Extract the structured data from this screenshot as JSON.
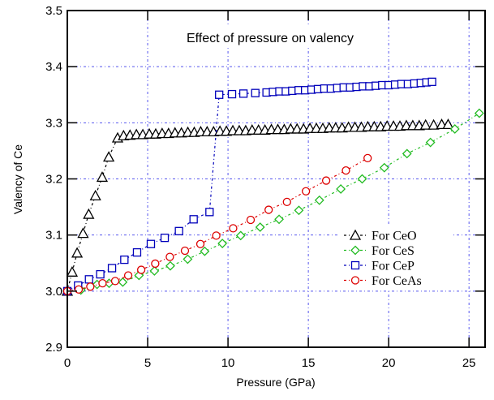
{
  "chart_data": {
    "type": "line",
    "title": "Effect of pressure on valency",
    "xlabel": "Pressure (GPa)",
    "ylabel": "Valency of Ce",
    "xlim": [
      0,
      26
    ],
    "ylim": [
      2.9,
      3.5
    ],
    "xticks": [
      0,
      5,
      10,
      15,
      20,
      25
    ],
    "xtick_labels": [
      "0",
      "5",
      "10",
      "15",
      "20",
      "25"
    ],
    "yticks": [
      2.9,
      3.0,
      3.1,
      3.2,
      3.3,
      3.4,
      3.5
    ],
    "ytick_labels": [
      "2.9",
      "3.0",
      "3.1",
      "3.2",
      "3.3",
      "3.4",
      "3.5"
    ],
    "grid": true,
    "legend_position": "center-right",
    "series": [
      {
        "name": "For CeO",
        "marker": "triangle",
        "color": "#000000",
        "x": [
          0,
          0.3,
          0.61,
          0.98,
          1.33,
          1.75,
          2.17,
          2.58,
          3.13,
          3.5,
          3.9,
          4.3,
          4.7,
          5.1,
          5.5,
          5.9,
          6.3,
          6.7,
          7.1,
          7.5,
          7.9,
          8.3,
          8.7,
          9.1,
          9.5,
          9.9,
          10.3,
          10.7,
          11.1,
          11.5,
          11.9,
          12.3,
          12.7,
          13.1,
          13.5,
          13.9,
          14.3,
          14.7,
          15.1,
          15.5,
          15.9,
          16.3,
          16.7,
          17.1,
          17.5,
          17.9,
          18.3,
          18.7,
          19.1,
          19.5,
          19.9,
          20.3,
          20.7,
          21.1,
          21.5,
          21.9,
          22.3,
          22.8,
          23.3,
          23.7
        ],
        "y": [
          3.0,
          3.034,
          3.068,
          3.103,
          3.137,
          3.17,
          3.203,
          3.239,
          3.273,
          3.277,
          3.278,
          3.279,
          3.279,
          3.28,
          3.28,
          3.281,
          3.281,
          3.282,
          3.282,
          3.283,
          3.283,
          3.284,
          3.284,
          3.284,
          3.285,
          3.285,
          3.286,
          3.286,
          3.286,
          3.287,
          3.287,
          3.287,
          3.288,
          3.288,
          3.288,
          3.289,
          3.289,
          3.289,
          3.29,
          3.29,
          3.29,
          3.291,
          3.291,
          3.291,
          3.292,
          3.292,
          3.292,
          3.293,
          3.293,
          3.293,
          3.294,
          3.294,
          3.294,
          3.295,
          3.295,
          3.295,
          3.296,
          3.296,
          3.297,
          3.297
        ]
      },
      {
        "name": "For CeS",
        "marker": "diamond",
        "color": "#22bb22",
        "x": [
          0,
          0.84,
          1.85,
          2.6,
          3.45,
          4.46,
          5.42,
          6.41,
          7.49,
          8.55,
          9.65,
          10.79,
          12.0,
          13.18,
          14.41,
          15.69,
          17.02,
          18.35,
          19.73,
          21.14,
          22.6,
          24.12,
          25.64
        ],
        "y": [
          3.0,
          3.002,
          3.012,
          3.014,
          3.016,
          3.028,
          3.036,
          3.045,
          3.057,
          3.071,
          3.085,
          3.099,
          3.114,
          3.128,
          3.144,
          3.162,
          3.182,
          3.2,
          3.22,
          3.245,
          3.265,
          3.289,
          3.317
        ]
      },
      {
        "name": "For CeP",
        "marker": "square",
        "color": "#0000bb",
        "x": [
          0,
          0.67,
          1.35,
          2.05,
          2.78,
          3.55,
          4.34,
          5.2,
          6.06,
          6.95,
          7.86,
          8.85,
          9.45,
          10.25,
          10.96,
          11.7,
          12.4,
          12.8,
          13.2,
          13.6,
          14.0,
          14.4,
          14.8,
          15.2,
          15.6,
          16.0,
          16.4,
          16.8,
          17.2,
          17.6,
          18.0,
          18.4,
          18.8,
          19.2,
          19.6,
          20.0,
          20.4,
          20.8,
          21.2,
          21.6,
          22.0,
          22.35,
          22.7
        ],
        "y": [
          3.0,
          3.01,
          3.021,
          3.03,
          3.041,
          3.056,
          3.069,
          3.084,
          3.095,
          3.107,
          3.128,
          3.141,
          3.35,
          3.351,
          3.352,
          3.353,
          3.354,
          3.355,
          3.356,
          3.356,
          3.357,
          3.358,
          3.358,
          3.359,
          3.36,
          3.361,
          3.361,
          3.362,
          3.363,
          3.363,
          3.364,
          3.365,
          3.365,
          3.366,
          3.367,
          3.367,
          3.368,
          3.369,
          3.369,
          3.37,
          3.371,
          3.372,
          3.373
        ]
      },
      {
        "name": "For CeAs",
        "marker": "circle",
        "color": "#dd0000",
        "x": [
          0,
          0.71,
          1.43,
          2.19,
          2.98,
          3.79,
          4.6,
          5.47,
          6.38,
          7.32,
          8.28,
          9.27,
          10.32,
          11.41,
          12.53,
          13.67,
          14.85,
          16.11,
          17.34,
          18.69
        ],
        "y": [
          3.0,
          3.003,
          3.008,
          3.014,
          3.018,
          3.028,
          3.038,
          3.049,
          3.061,
          3.072,
          3.084,
          3.099,
          3.112,
          3.127,
          3.145,
          3.159,
          3.178,
          3.197,
          3.215,
          3.237
        ]
      }
    ]
  },
  "colors": {
    "grid": "#5555ee",
    "axis": "#000000"
  }
}
